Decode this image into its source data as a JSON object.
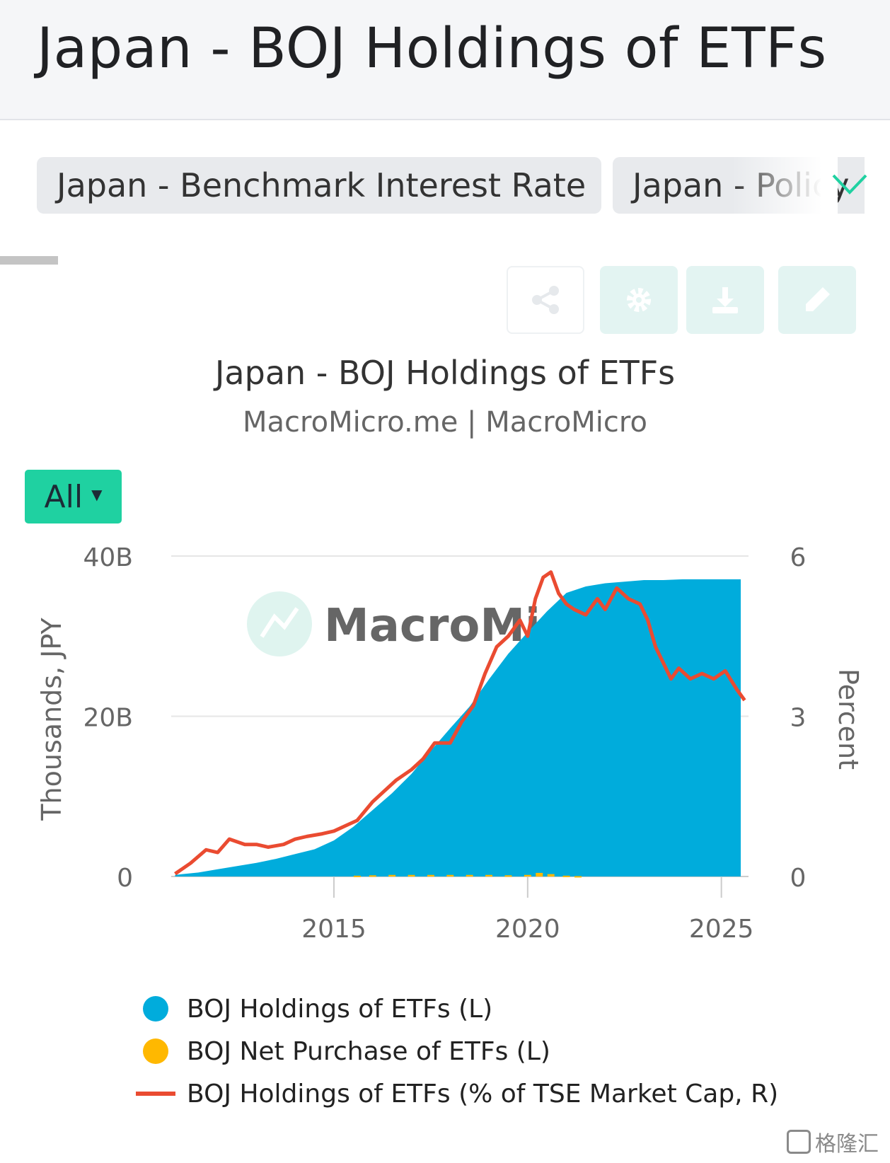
{
  "header": {
    "title": "Japan - BOJ Holdings of ETFs"
  },
  "tabs": [
    {
      "label": "Japan - Benchmark Interest Rate"
    },
    {
      "label": "Japan - Policy"
    }
  ],
  "toolbar": {
    "share_icon": "share-icon",
    "settings_icon": "gear-icon",
    "download_icon": "download-icon",
    "edit_icon": "pencil-icon"
  },
  "range_selector": {
    "label": "All"
  },
  "colors": {
    "accent": "#1fd1a1",
    "holdings": "#00acdc",
    "net_purchase": "#ffb800",
    "pct_line": "#ea4b31",
    "grid": "#e6e6e6"
  },
  "chart_data": {
    "type": "area",
    "title": "Japan - BOJ Holdings of ETFs",
    "subtitle": "MacroMicro.me | MacroMicro",
    "watermark": "MacroMicro",
    "ylabel_left": "Thousands, JPY",
    "ylabel_right": "Percent",
    "y_left_ticks": [
      "0",
      "20B",
      "40B"
    ],
    "y_right_ticks": [
      "0",
      "3",
      "6"
    ],
    "x_ticks": [
      "2015",
      "2020",
      "2025"
    ],
    "ylim_left": [
      0,
      40
    ],
    "ylim_right": [
      0,
      6
    ],
    "xlim": [
      2010.8,
      2025.7
    ],
    "grid": true,
    "legend_position": "bottom",
    "series": [
      {
        "name": "BOJ Holdings of ETFs (L)",
        "type": "area",
        "axis": "left",
        "unit": "billion JPY",
        "x": [
          2010.9,
          2011.5,
          2012.0,
          2012.5,
          2013.0,
          2013.5,
          2014.0,
          2014.5,
          2015.0,
          2015.5,
          2016.0,
          2016.5,
          2017.0,
          2017.5,
          2018.0,
          2018.5,
          2019.0,
          2019.5,
          2020.0,
          2020.5,
          2021.0,
          2021.5,
          2022.0,
          2022.5,
          2023.0,
          2023.5,
          2024.0,
          2024.5,
          2025.0,
          2025.5
        ],
        "values": [
          0.2,
          0.5,
          0.9,
          1.3,
          1.7,
          2.2,
          2.8,
          3.4,
          4.5,
          6.2,
          8.3,
          10.4,
          12.8,
          15.7,
          18.5,
          21.2,
          24.6,
          27.8,
          30.5,
          33.1,
          35.4,
          36.2,
          36.6,
          36.8,
          37.0,
          37.0,
          37.1,
          37.1,
          37.1,
          37.1
        ]
      },
      {
        "name": "BOJ Net Purchase of ETFs (L)",
        "type": "bar",
        "axis": "left",
        "unit": "billion JPY",
        "x": [
          2015.6,
          2016.0,
          2016.5,
          2017.0,
          2017.5,
          2018.0,
          2018.5,
          2019.0,
          2019.5,
          2020.0,
          2020.3,
          2020.6,
          2021.0,
          2021.3
        ],
        "values": [
          0.1,
          0.15,
          0.2,
          0.2,
          0.2,
          0.2,
          0.2,
          0.2,
          0.15,
          0.2,
          0.45,
          0.3,
          0.1,
          0.05
        ]
      },
      {
        "name": "BOJ Holdings of ETFs (% of TSE Market Cap, R)",
        "type": "line",
        "axis": "right",
        "unit": "percent",
        "x": [
          2010.9,
          2011.3,
          2011.7,
          2012.0,
          2012.3,
          2012.7,
          2013.0,
          2013.3,
          2013.7,
          2014.0,
          2014.3,
          2014.7,
          2015.0,
          2015.3,
          2015.6,
          2016.0,
          2016.3,
          2016.6,
          2017.0,
          2017.3,
          2017.6,
          2018.0,
          2018.3,
          2018.6,
          2018.9,
          2019.2,
          2019.5,
          2019.8,
          2020.0,
          2020.2,
          2020.4,
          2020.6,
          2020.8,
          2021.0,
          2021.2,
          2021.5,
          2021.8,
          2022.0,
          2022.3,
          2022.6,
          2022.9,
          2023.1,
          2023.3,
          2023.5,
          2023.7,
          2023.9,
          2024.2,
          2024.5,
          2024.8,
          2025.1,
          2025.4,
          2025.6
        ],
        "values": [
          0.05,
          0.25,
          0.5,
          0.45,
          0.7,
          0.6,
          0.6,
          0.55,
          0.6,
          0.7,
          0.75,
          0.8,
          0.85,
          0.95,
          1.05,
          1.4,
          1.6,
          1.8,
          2.0,
          2.2,
          2.5,
          2.5,
          2.9,
          3.2,
          3.8,
          4.3,
          4.5,
          4.8,
          4.5,
          5.2,
          5.6,
          5.7,
          5.3,
          5.1,
          5.0,
          4.9,
          5.2,
          5.0,
          5.4,
          5.2,
          5.1,
          4.8,
          4.3,
          4.0,
          3.7,
          3.9,
          3.7,
          3.8,
          3.7,
          3.85,
          3.5,
          3.3
        ]
      }
    ]
  },
  "corner_brand": {
    "text": "格隆汇"
  }
}
